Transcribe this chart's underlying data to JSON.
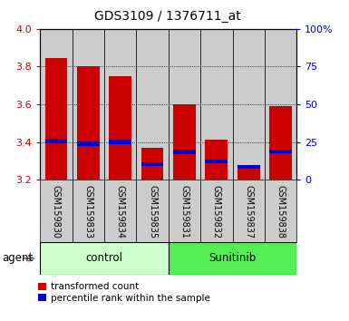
{
  "title": "GDS3109 / 1376711_at",
  "samples": [
    "GSM159830",
    "GSM159833",
    "GSM159834",
    "GSM159835",
    "GSM159831",
    "GSM159832",
    "GSM159837",
    "GSM159838"
  ],
  "red_values": [
    3.845,
    3.8,
    3.75,
    3.37,
    3.6,
    3.415,
    3.27,
    3.59
  ],
  "blue_values": [
    3.405,
    3.392,
    3.402,
    3.283,
    3.347,
    3.298,
    3.268,
    3.35
  ],
  "ymin": 3.2,
  "ymax": 4.0,
  "y2min": 0,
  "y2max": 100,
  "yticks": [
    3.2,
    3.4,
    3.6,
    3.8,
    4.0
  ],
  "y2ticks": [
    0,
    25,
    50,
    75,
    100
  ],
  "red_color": "#cc0000",
  "blue_color": "#0000cc",
  "control_color": "#ccffcc",
  "sunitinib_color": "#55ee55",
  "bar_bg_color": "#cccccc",
  "grid_ticks": [
    3.4,
    3.6,
    3.8
  ],
  "legend1": "transformed count",
  "legend2": "percentile rank within the sample"
}
